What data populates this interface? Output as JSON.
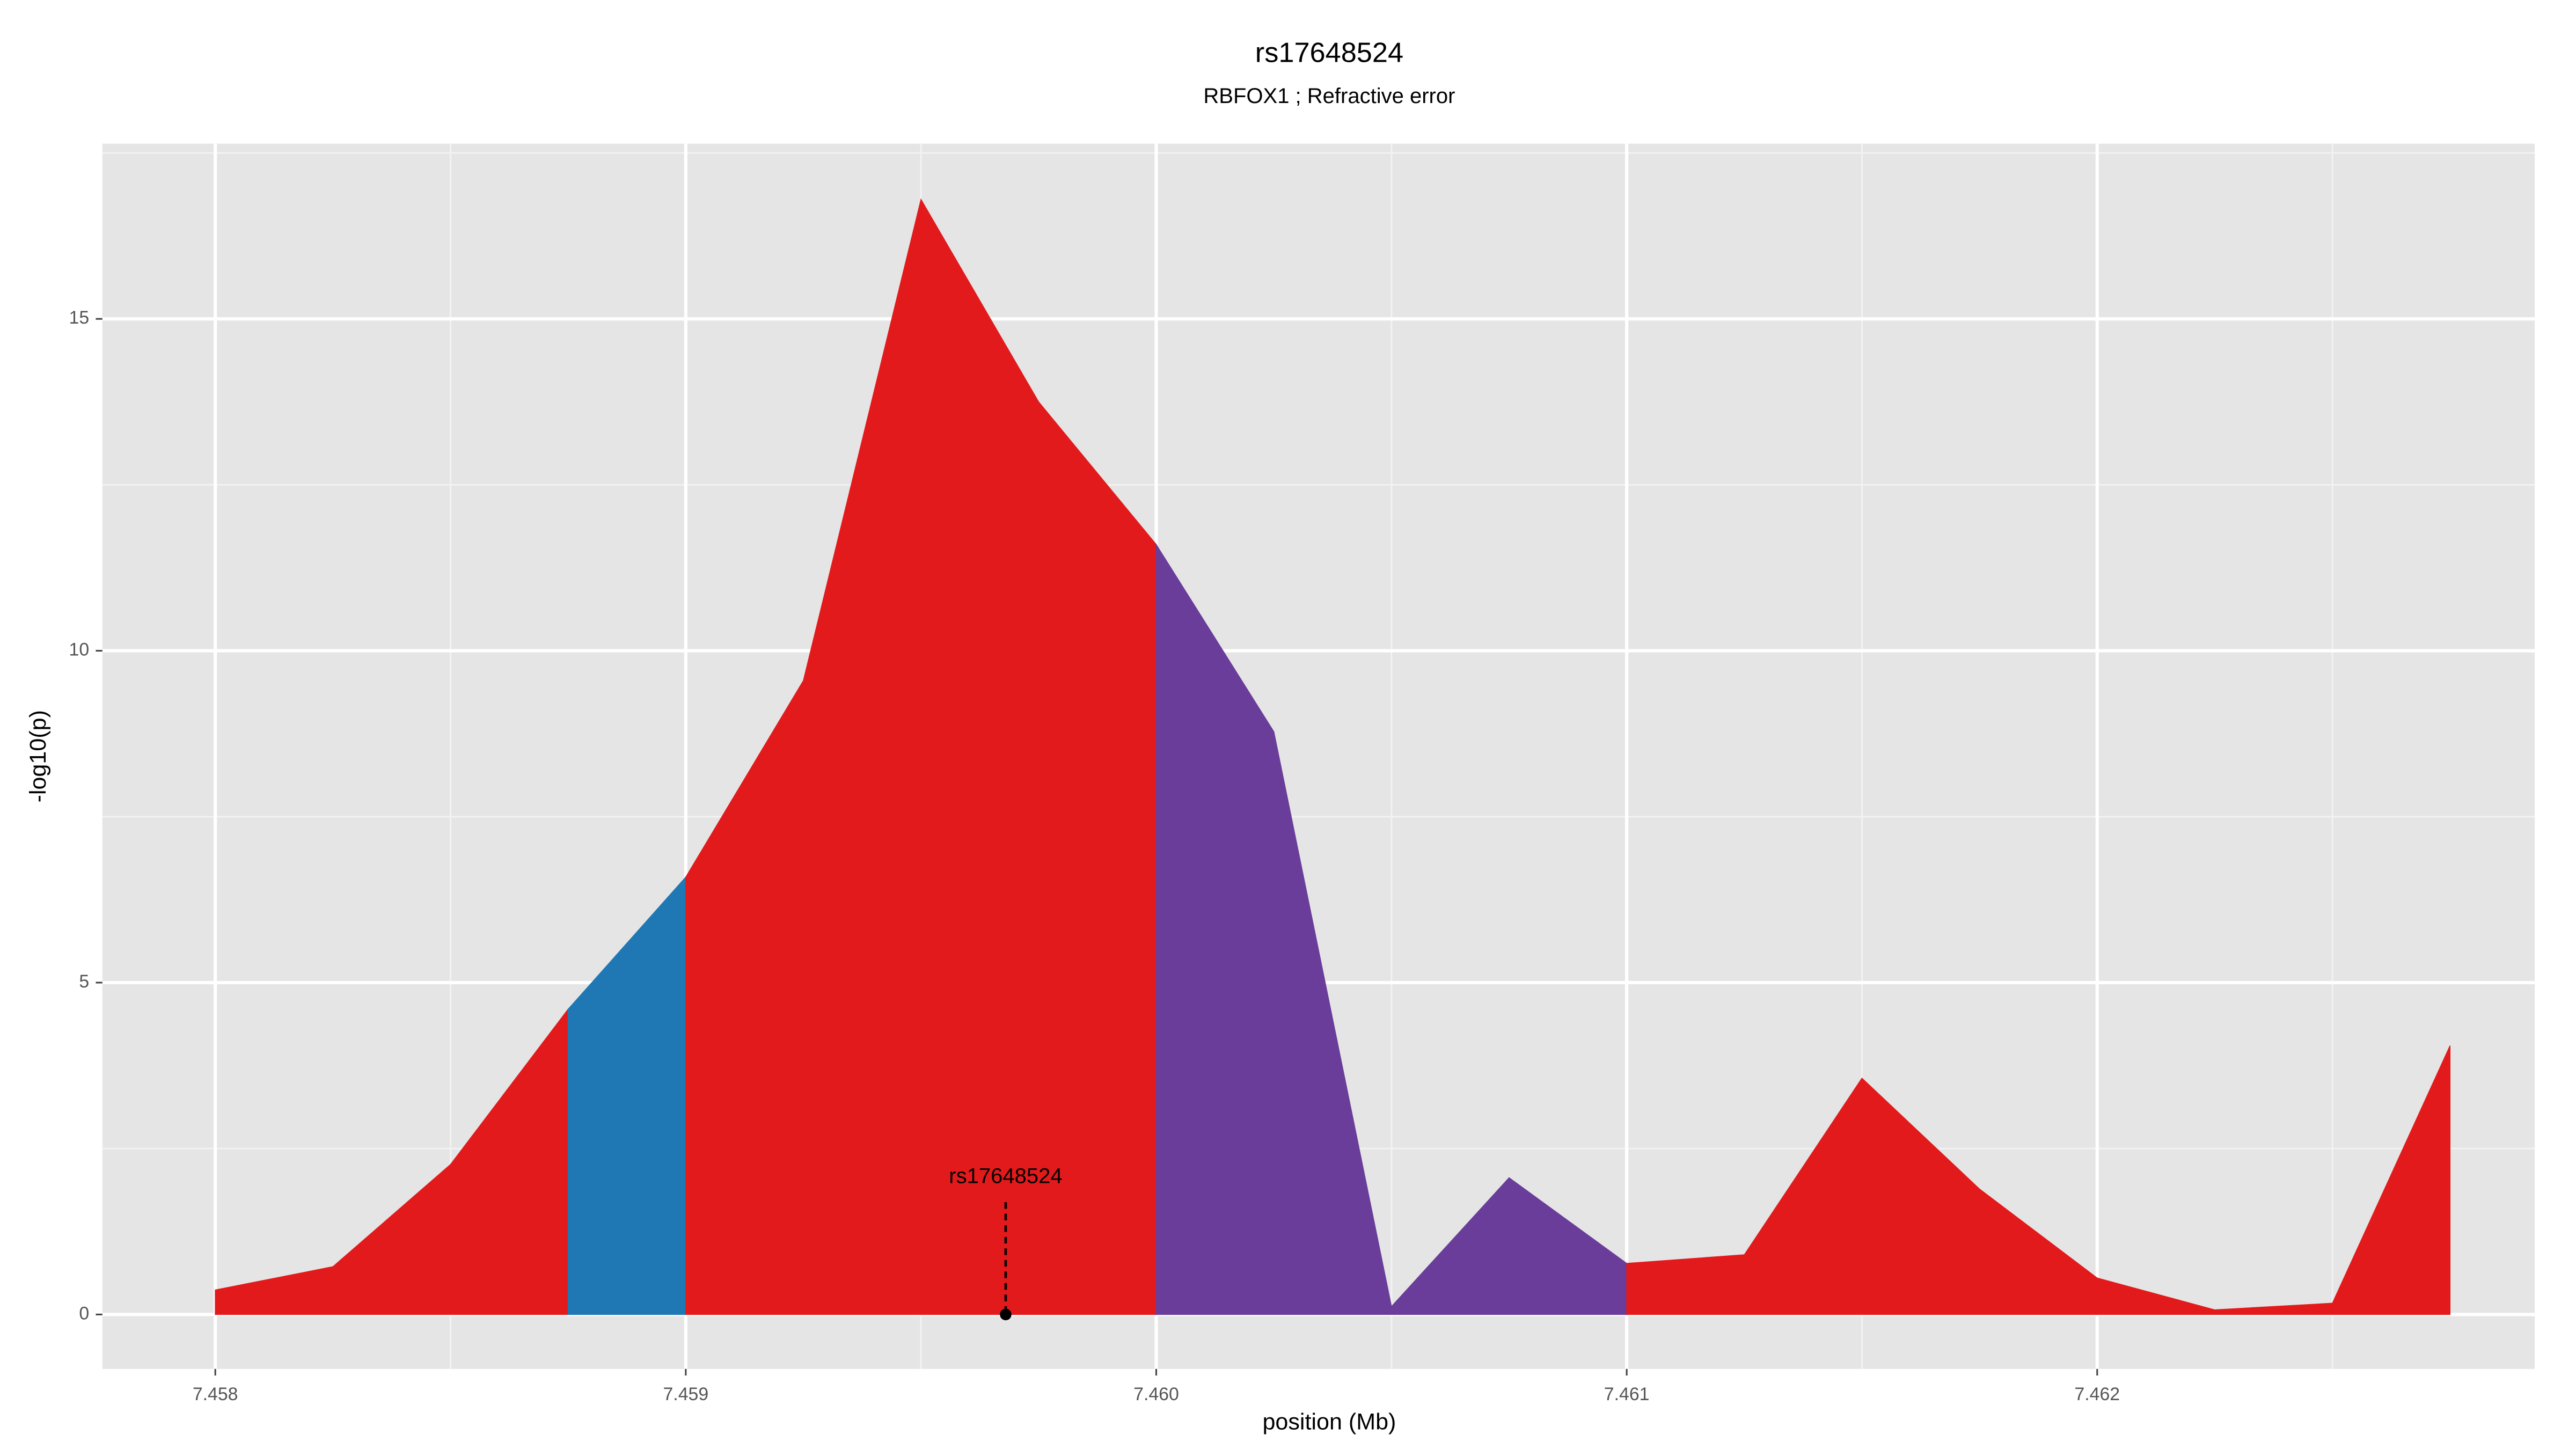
{
  "chart_data": {
    "type": "area",
    "title": "rs17648524",
    "subtitle": "RBFOX1 ; Refractive error",
    "xlabel": "position (Mb)",
    "ylabel": "-log10(p)",
    "series": [
      {
        "color": "#e31a1c",
        "x": [
          7.458,
          7.45825,
          7.4585,
          7.45875
        ],
        "values": [
          0.37,
          0.72,
          2.26,
          4.6
        ]
      },
      {
        "color": "#1f78b4",
        "x": [
          7.45875,
          7.459
        ],
        "values": [
          4.6,
          6.59
        ]
      },
      {
        "color": "#e31a1c",
        "x": [
          7.459,
          7.45925,
          7.4595,
          7.45975,
          7.46
        ],
        "values": [
          6.59,
          9.55,
          16.8,
          13.75,
          11.6
        ]
      },
      {
        "color": "#6a3d9a",
        "x": [
          7.46,
          7.46025,
          7.4605,
          7.46075,
          7.461
        ],
        "values": [
          11.6,
          8.78,
          0.12,
          2.06,
          0.77
        ]
      },
      {
        "color": "#e31a1c",
        "x": [
          7.461,
          7.46125,
          7.4615,
          7.46175,
          7.462,
          7.46225,
          7.4625,
          7.46275
        ],
        "values": [
          0.77,
          0.9,
          3.56,
          1.89,
          0.55,
          0.07,
          0.17,
          4.05
        ]
      }
    ],
    "annotation": {
      "text": "rs17648524",
      "x": 7.45968,
      "y": 0
    },
    "xlim": [
      7.45776,
      7.46293
    ],
    "ylim": [
      -0.82,
      17.64
    ],
    "xticks": [
      7.458,
      7.459,
      {
        "value": 7.46,
        "label": "7.460"
      },
      7.461,
      7.462
    ],
    "yticks": [
      0,
      5,
      10,
      15
    ],
    "grid": true,
    "panel_color": "#e5e5e5"
  }
}
